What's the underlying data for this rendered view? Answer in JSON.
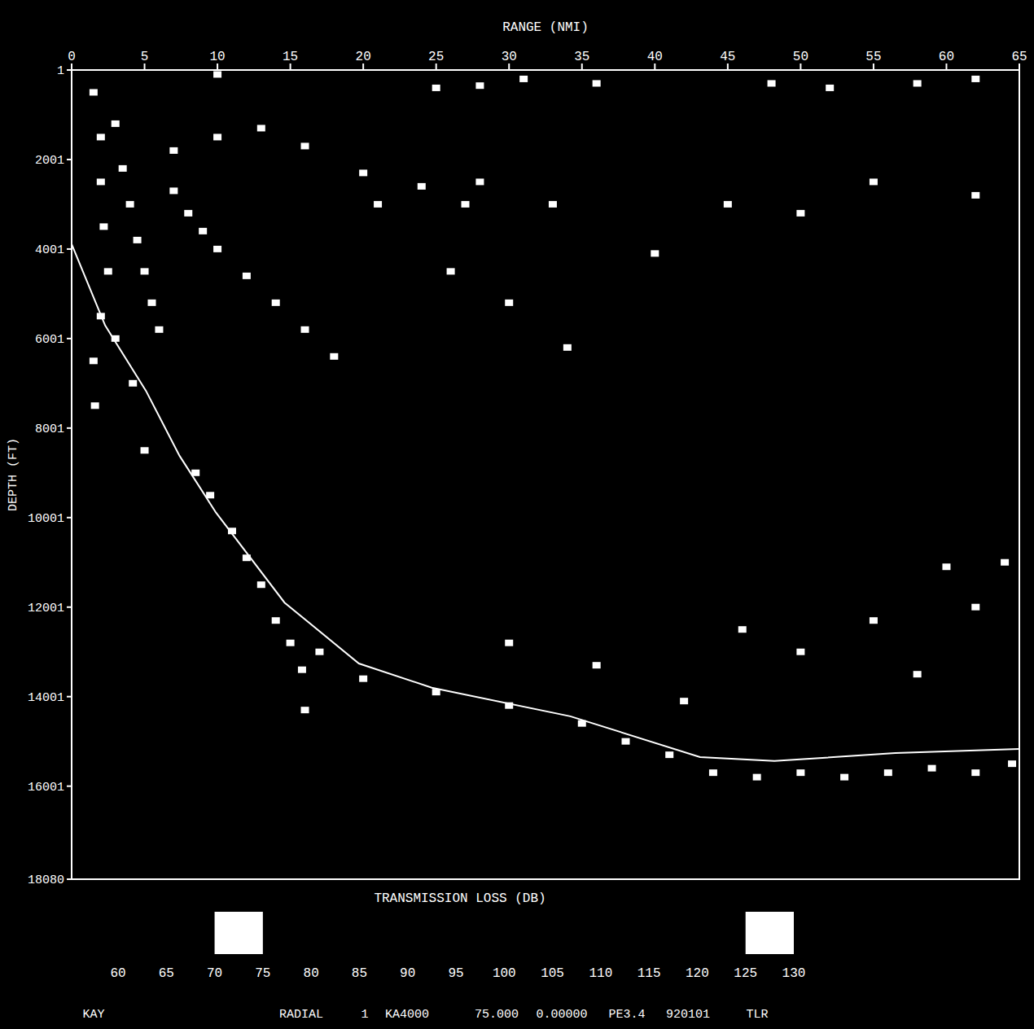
{
  "chart_data": {
    "type": "heatmap",
    "x_label": "RANGE (NMI)",
    "y_label": "DEPTH (FT)",
    "xlim": [
      0,
      65
    ],
    "xticks": [
      0,
      5,
      10,
      15,
      20,
      25,
      30,
      35,
      40,
      45,
      50,
      55,
      60,
      65
    ],
    "ylim": [
      1,
      18080
    ],
    "yticks": [
      1,
      2001,
      4001,
      6001,
      8001,
      10001,
      12001,
      14001,
      16001,
      18080
    ],
    "grid": false,
    "color": "#ffffff",
    "bathymetry": {
      "x": [
        0,
        2.3,
        5.1,
        7.4,
        9.9,
        14.6,
        19.7,
        24.7,
        34.2,
        43.1,
        48.2,
        56.5,
        65
      ],
      "depth": [
        3890,
        5710,
        7170,
        8620,
        9890,
        11900,
        13260,
        13800,
        14440,
        15350,
        15440,
        15260,
        15170
      ]
    },
    "cells": [
      {
        "x": 1.5,
        "y": 500,
        "value": 72
      },
      {
        "x": 2,
        "y": 1500,
        "value": 72
      },
      {
        "x": 2,
        "y": 2500,
        "value": 72
      },
      {
        "x": 2.2,
        "y": 3500,
        "value": 72
      },
      {
        "x": 2.5,
        "y": 4500,
        "value": 72
      },
      {
        "x": 2,
        "y": 5500,
        "value": 72
      },
      {
        "x": 1.5,
        "y": 6500,
        "value": 72
      },
      {
        "x": 1.6,
        "y": 7500,
        "value": 72
      },
      {
        "x": 3,
        "y": 1200,
        "value": 72
      },
      {
        "x": 3.5,
        "y": 2200,
        "value": 72
      },
      {
        "x": 4,
        "y": 3000,
        "value": 72
      },
      {
        "x": 4.5,
        "y": 3800,
        "value": 72
      },
      {
        "x": 5,
        "y": 4500,
        "value": 72
      },
      {
        "x": 5.5,
        "y": 5200,
        "value": 72
      },
      {
        "x": 6,
        "y": 5800,
        "value": 72
      },
      {
        "x": 3,
        "y": 6000,
        "value": 72
      },
      {
        "x": 4.2,
        "y": 7000,
        "value": 72
      },
      {
        "x": 5,
        "y": 8500,
        "value": 72
      },
      {
        "x": 7,
        "y": 2700,
        "value": 73
      },
      {
        "x": 8,
        "y": 3200,
        "value": 73
      },
      {
        "x": 9,
        "y": 3600,
        "value": 73
      },
      {
        "x": 10,
        "y": 4000,
        "value": 73
      },
      {
        "x": 12,
        "y": 4600,
        "value": 73
      },
      {
        "x": 14,
        "y": 5200,
        "value": 73
      },
      {
        "x": 16,
        "y": 5800,
        "value": 73
      },
      {
        "x": 18,
        "y": 6400,
        "value": 73
      },
      {
        "x": 7,
        "y": 1800,
        "value": 74
      },
      {
        "x": 10,
        "y": 1500,
        "value": 74
      },
      {
        "x": 13,
        "y": 1300,
        "value": 74
      },
      {
        "x": 16,
        "y": 1700,
        "value": 74
      },
      {
        "x": 20,
        "y": 2300,
        "value": 74
      },
      {
        "x": 24,
        "y": 2600,
        "value": 74
      },
      {
        "x": 28,
        "y": 2500,
        "value": 74
      },
      {
        "x": 27,
        "y": 3000,
        "value": 74
      },
      {
        "x": 8.5,
        "y": 9000,
        "value": 72
      },
      {
        "x": 9.5,
        "y": 9500,
        "value": 72
      },
      {
        "x": 11,
        "y": 10300,
        "value": 72
      },
      {
        "x": 12,
        "y": 10900,
        "value": 72
      },
      {
        "x": 13,
        "y": 11500,
        "value": 72
      },
      {
        "x": 14,
        "y": 12300,
        "value": 72
      },
      {
        "x": 15,
        "y": 12800,
        "value": 72
      },
      {
        "x": 15.8,
        "y": 13400,
        "value": 72
      },
      {
        "x": 16,
        "y": 14300,
        "value": 72
      },
      {
        "x": 17,
        "y": 13000,
        "value": 72
      },
      {
        "x": 20,
        "y": 13600,
        "value": 127
      },
      {
        "x": 25,
        "y": 13900,
        "value": 127
      },
      {
        "x": 30,
        "y": 14200,
        "value": 127
      },
      {
        "x": 35,
        "y": 14600,
        "value": 127
      },
      {
        "x": 38,
        "y": 15000,
        "value": 127
      },
      {
        "x": 41,
        "y": 15300,
        "value": 127
      },
      {
        "x": 44,
        "y": 15700,
        "value": 127
      },
      {
        "x": 47,
        "y": 15800,
        "value": 127
      },
      {
        "x": 50,
        "y": 15700,
        "value": 127
      },
      {
        "x": 53,
        "y": 15800,
        "value": 127
      },
      {
        "x": 56,
        "y": 15700,
        "value": 127
      },
      {
        "x": 59,
        "y": 15600,
        "value": 127
      },
      {
        "x": 62,
        "y": 15700,
        "value": 127
      },
      {
        "x": 64.5,
        "y": 15500,
        "value": 127
      },
      {
        "x": 46,
        "y": 12500,
        "value": 127
      },
      {
        "x": 50,
        "y": 13000,
        "value": 127
      },
      {
        "x": 55,
        "y": 12300,
        "value": 127
      },
      {
        "x": 58,
        "y": 13500,
        "value": 127
      },
      {
        "x": 62,
        "y": 12000,
        "value": 127
      },
      {
        "x": 60,
        "y": 11100,
        "value": 127
      },
      {
        "x": 64,
        "y": 11000,
        "value": 127
      },
      {
        "x": 30,
        "y": 12800,
        "value": 127
      },
      {
        "x": 36,
        "y": 13300,
        "value": 127
      },
      {
        "x": 42,
        "y": 14100,
        "value": 127
      },
      {
        "x": 10,
        "y": 100,
        "value": 127
      },
      {
        "x": 25,
        "y": 400,
        "value": 127
      },
      {
        "x": 28,
        "y": 350,
        "value": 127
      },
      {
        "x": 31,
        "y": 200,
        "value": 127
      },
      {
        "x": 36,
        "y": 300,
        "value": 127
      },
      {
        "x": 48,
        "y": 300,
        "value": 127
      },
      {
        "x": 52,
        "y": 400,
        "value": 127
      },
      {
        "x": 58,
        "y": 300,
        "value": 127
      },
      {
        "x": 62,
        "y": 200,
        "value": 127
      },
      {
        "x": 30,
        "y": 5200,
        "value": 127
      },
      {
        "x": 34,
        "y": 6200,
        "value": 127
      },
      {
        "x": 26,
        "y": 4500,
        "value": 127
      },
      {
        "x": 40,
        "y": 4100,
        "value": 127
      },
      {
        "x": 45,
        "y": 3000,
        "value": 127
      },
      {
        "x": 50,
        "y": 3200,
        "value": 127
      },
      {
        "x": 55,
        "y": 2500,
        "value": 127
      },
      {
        "x": 62,
        "y": 2800,
        "value": 127
      },
      {
        "x": 21,
        "y": 3000,
        "value": 127
      },
      {
        "x": 33,
        "y": 3000,
        "value": 127
      }
    ],
    "colorbar": {
      "label": "TRANSMISSION LOSS (DB)",
      "range": [
        60,
        130
      ],
      "ticks": [
        60,
        65,
        70,
        75,
        80,
        85,
        90,
        95,
        100,
        105,
        110,
        115,
        120,
        125,
        130
      ],
      "highlight": [
        [
          70,
          75
        ],
        [
          125,
          130
        ]
      ]
    },
    "footer": [
      "KAY",
      "RADIAL",
      "1",
      "KA4000",
      "75.000",
      "0.00000",
      "PE3.4",
      "920101",
      "TLR"
    ]
  }
}
